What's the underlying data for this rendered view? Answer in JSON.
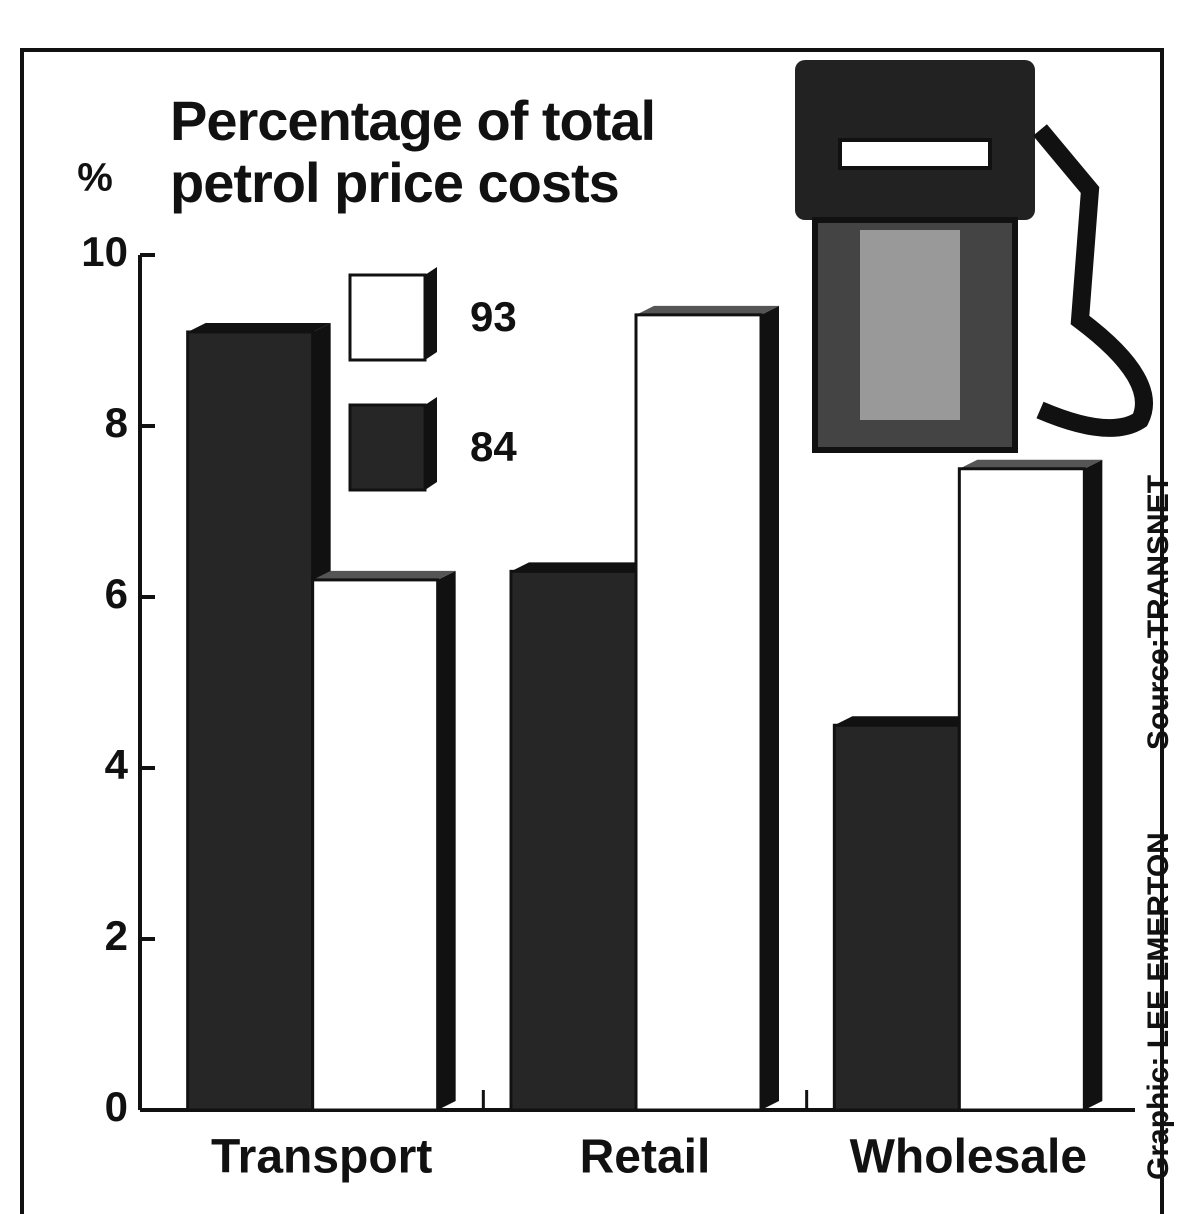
{
  "chart_data": {
    "type": "bar",
    "title": "Percentage of total petrol price costs",
    "ylabel": "%",
    "source": "Source:TRANSNET",
    "credit": "Graphic: LEE EMERTON",
    "categories": [
      "Transport",
      "Retail",
      "Wholesale"
    ],
    "series": [
      {
        "name": "84",
        "color": "#262626",
        "values": [
          9.1,
          6.3,
          4.5
        ]
      },
      {
        "name": "93",
        "color": "#ffffff",
        "values": [
          6.2,
          9.3,
          7.5
        ]
      }
    ],
    "ylim": [
      0,
      10
    ],
    "yticks": [
      0,
      2,
      4,
      6,
      8,
      10
    ],
    "grid": false
  }
}
